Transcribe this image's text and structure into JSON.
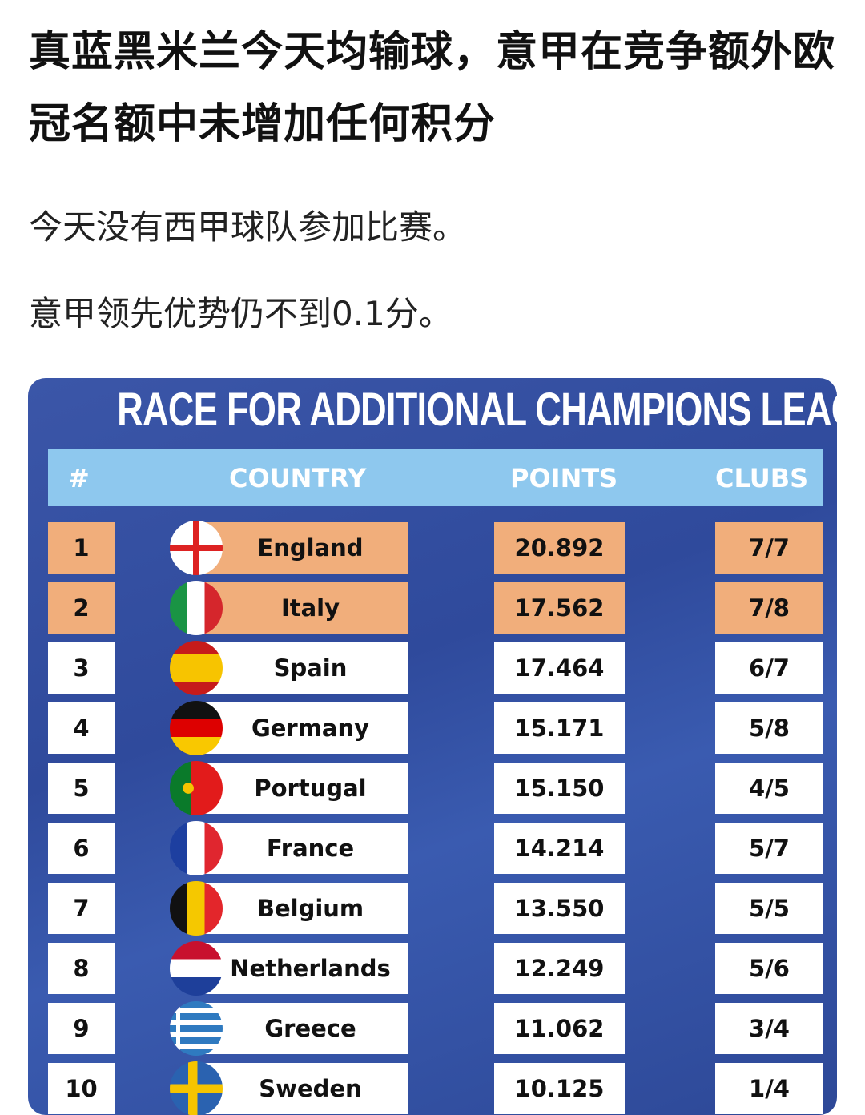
{
  "headline": "真蓝黑米兰今天均输球，意甲在竞争额外欧冠名额中未增加任何积分",
  "paragraphs": [
    "今天没有西甲球队参加比赛。",
    "意甲领先优势仍不到0.1分。"
  ],
  "table": {
    "title": "RACE FOR ADDITIONAL CHAMPIONS LEAGUE SPOTS",
    "headers": {
      "rank": "#",
      "country": "COUNTRY",
      "points": "POINTS",
      "clubs": "CLUBS"
    },
    "rows": [
      {
        "rank": "1",
        "country": "England",
        "points": "20.892",
        "clubs": "7/7",
        "highlight": true
      },
      {
        "rank": "2",
        "country": "Italy",
        "points": "17.562",
        "clubs": "7/8",
        "highlight": true
      },
      {
        "rank": "3",
        "country": "Spain",
        "points": "17.464",
        "clubs": "6/7"
      },
      {
        "rank": "4",
        "country": "Germany",
        "points": "15.171",
        "clubs": "5/8"
      },
      {
        "rank": "5",
        "country": "Portugal",
        "points": "15.150",
        "clubs": "4/5"
      },
      {
        "rank": "6",
        "country": "France",
        "points": "14.214",
        "clubs": "5/7"
      },
      {
        "rank": "7",
        "country": "Belgium",
        "points": "13.550",
        "clubs": "5/5"
      },
      {
        "rank": "8",
        "country": "Netherlands",
        "points": "12.249",
        "clubs": "5/6"
      },
      {
        "rank": "9",
        "country": "Greece",
        "points": "11.062",
        "clubs": "3/4"
      },
      {
        "rank": "10",
        "country": "Sweden",
        "points": "10.125",
        "clubs": "1/4"
      }
    ]
  },
  "colors": {
    "highlight": "#f1ae7b",
    "header": "#8ec8ee",
    "background": "#3350a3"
  }
}
